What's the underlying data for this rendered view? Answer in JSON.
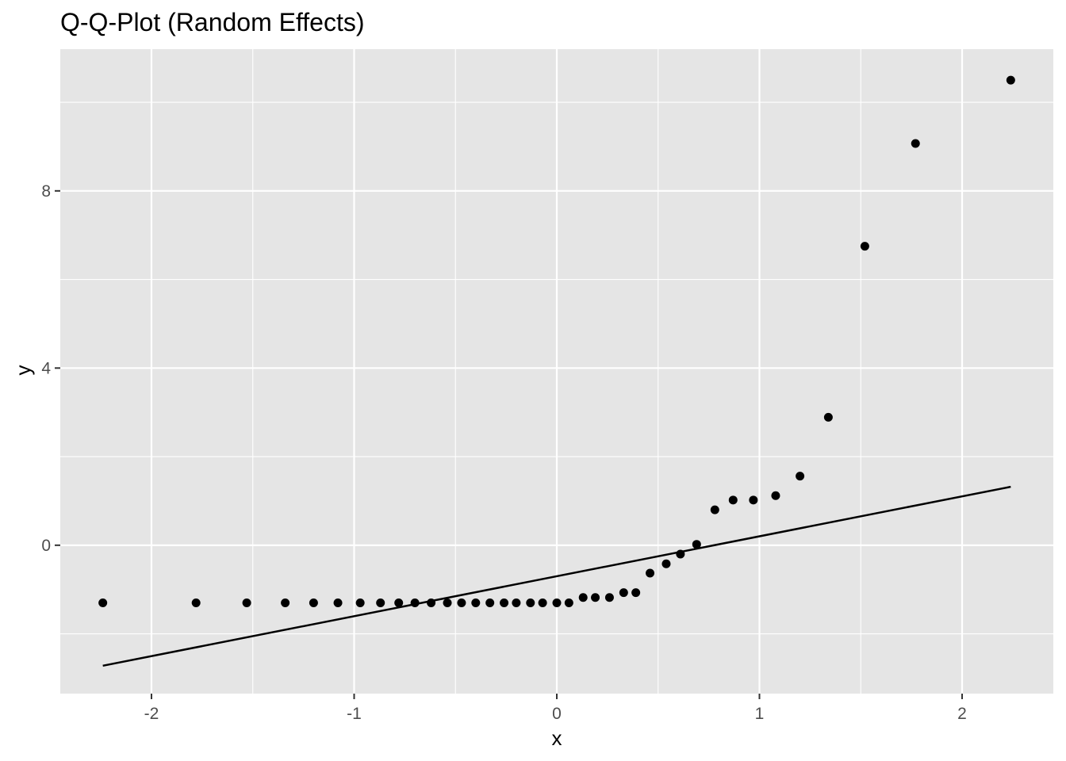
{
  "chart_data": {
    "type": "scatter",
    "title": "Q-Q-Plot (Random Effects)",
    "xlabel": "x",
    "ylabel": "y",
    "xlim": [
      -2.45,
      2.45
    ],
    "ylim": [
      -3.35,
      11.2
    ],
    "x_ticks": [
      -2,
      -1,
      0,
      1,
      2
    ],
    "x_tick_labels": [
      "-2",
      "-1",
      "0",
      "1",
      "2"
    ],
    "y_ticks": [
      0,
      4,
      8
    ],
    "y_tick_labels": [
      "0",
      "4",
      "8"
    ],
    "x_minor": [
      -1.5,
      -0.5,
      0.5,
      1.5
    ],
    "y_minor": [
      -2,
      2,
      6,
      10
    ],
    "grid": true,
    "colors": {
      "panel": "#e5e5e5",
      "grid": "#ffffff",
      "points": "#000000",
      "line": "#000000",
      "tick": "#333333"
    },
    "points": [
      {
        "x": -2.24,
        "y": -1.3
      },
      {
        "x": -1.78,
        "y": -1.3
      },
      {
        "x": -1.53,
        "y": -1.3
      },
      {
        "x": -1.34,
        "y": -1.3
      },
      {
        "x": -1.2,
        "y": -1.3
      },
      {
        "x": -1.08,
        "y": -1.3
      },
      {
        "x": -0.97,
        "y": -1.3
      },
      {
        "x": -0.87,
        "y": -1.3
      },
      {
        "x": -0.78,
        "y": -1.3
      },
      {
        "x": -0.7,
        "y": -1.3
      },
      {
        "x": -0.62,
        "y": -1.3
      },
      {
        "x": -0.54,
        "y": -1.3
      },
      {
        "x": -0.47,
        "y": -1.3
      },
      {
        "x": -0.4,
        "y": -1.3
      },
      {
        "x": -0.33,
        "y": -1.3
      },
      {
        "x": -0.26,
        "y": -1.3
      },
      {
        "x": -0.2,
        "y": -1.3
      },
      {
        "x": -0.13,
        "y": -1.3
      },
      {
        "x": -0.07,
        "y": -1.3
      },
      {
        "x": 0.0,
        "y": -1.3
      },
      {
        "x": 0.06,
        "y": -1.3
      },
      {
        "x": 0.13,
        "y": -1.18
      },
      {
        "x": 0.19,
        "y": -1.18
      },
      {
        "x": 0.26,
        "y": -1.18
      },
      {
        "x": 0.33,
        "y": -1.07
      },
      {
        "x": 0.39,
        "y": -1.07
      },
      {
        "x": 0.46,
        "y": -0.63
      },
      {
        "x": 0.54,
        "y": -0.42
      },
      {
        "x": 0.61,
        "y": -0.2
      },
      {
        "x": 0.69,
        "y": 0.02
      },
      {
        "x": 0.78,
        "y": 0.8
      },
      {
        "x": 0.87,
        "y": 1.02
      },
      {
        "x": 0.97,
        "y": 1.02
      },
      {
        "x": 1.08,
        "y": 1.12
      },
      {
        "x": 1.2,
        "y": 1.56
      },
      {
        "x": 1.34,
        "y": 2.89
      },
      {
        "x": 1.52,
        "y": 6.75
      },
      {
        "x": 1.77,
        "y": 9.07
      },
      {
        "x": 2.24,
        "y": 10.5
      }
    ],
    "reference_line": {
      "x": [
        -2.24,
        2.24
      ],
      "y": [
        -2.72,
        1.32
      ]
    }
  }
}
